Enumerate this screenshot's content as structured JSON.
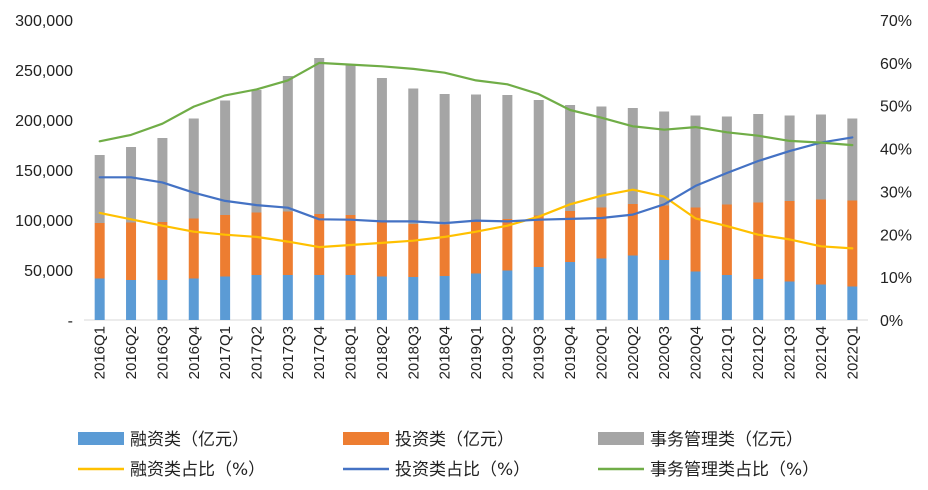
{
  "chart_data": {
    "type": "bar",
    "stacked": true,
    "categories": [
      "2016Q1",
      "2016Q2",
      "2016Q3",
      "2016Q4",
      "2017Q1",
      "2017Q2",
      "2017Q3",
      "2017Q4",
      "2018Q1",
      "2018Q2",
      "2018Q3",
      "2018Q4",
      "2019Q1",
      "2019Q2",
      "2019Q3",
      "2019Q4",
      "2020Q1",
      "2020Q2",
      "2020Q3",
      "2020Q4",
      "2021Q1",
      "2021Q2",
      "2021Q3",
      "2021Q4",
      "2022Q1"
    ],
    "left_axis": {
      "ylim": [
        0,
        300000
      ],
      "ticks": [
        0,
        50000,
        100000,
        150000,
        200000,
        250000,
        300000
      ],
      "tick_labels": [
        "-",
        "50,000",
        "100,000",
        "150,000",
        "200,000",
        "250,000",
        "300,000"
      ]
    },
    "right_axis": {
      "ylim": [
        0,
        70
      ],
      "ticks": [
        0,
        10,
        20,
        30,
        40,
        50,
        60,
        70
      ],
      "tick_labels": [
        "0%",
        "10%",
        "20%",
        "30%",
        "40%",
        "50%",
        "60%",
        "70%"
      ]
    },
    "bar_series": [
      {
        "name": "融资类（亿元）",
        "color": "#5B9BD5",
        "values": [
          41500,
          40000,
          40000,
          41500,
          43500,
          45000,
          45000,
          45000,
          45000,
          43500,
          43000,
          44000,
          46500,
          49500,
          53000,
          58000,
          61500,
          64500,
          60000,
          48500,
          45000,
          41000,
          38500,
          35500,
          33500
        ]
      },
      {
        "name": "投资类（亿元）",
        "color": "#ED7D31",
        "values": [
          55500,
          57500,
          58000,
          60000,
          61500,
          62500,
          63500,
          61000,
          60000,
          54500,
          53000,
          51500,
          53500,
          51500,
          51500,
          51000,
          51000,
          51500,
          54500,
          64000,
          70500,
          76500,
          80500,
          85000,
          86000
        ]
      },
      {
        "name": "事务管理类（亿元）",
        "color": "#A5A5A5",
        "values": [
          68000,
          75500,
          84000,
          100000,
          114500,
          122500,
          135500,
          156000,
          150000,
          144000,
          135500,
          130500,
          125500,
          124000,
          115500,
          106000,
          101000,
          96000,
          94000,
          92000,
          88000,
          88500,
          85500,
          85000,
          82000
        ]
      }
    ],
    "line_series": [
      {
        "name": "融资类占比（%）",
        "color": "#FFC000",
        "axis": "right",
        "values": [
          25.0,
          23.5,
          22.0,
          20.6,
          19.9,
          19.4,
          18.3,
          17.0,
          17.5,
          18.0,
          18.5,
          19.4,
          20.6,
          22.0,
          24.1,
          27.0,
          29.0,
          30.4,
          28.8,
          23.7,
          21.9,
          19.9,
          18.8,
          17.2,
          16.7
        ]
      },
      {
        "name": "投资类占比（%）",
        "color": "#4472C4",
        "axis": "right",
        "values": [
          33.3,
          33.3,
          32.1,
          29.7,
          27.8,
          26.8,
          26.2,
          23.5,
          23.4,
          23.0,
          23.0,
          22.6,
          23.2,
          23.0,
          23.4,
          23.6,
          23.8,
          24.6,
          27.0,
          31.3,
          34.3,
          37.1,
          39.4,
          41.4,
          42.6
        ]
      },
      {
        "name": "事务管理类占比（%）",
        "color": "#70AD47",
        "axis": "right",
        "values": [
          41.7,
          43.2,
          45.8,
          49.8,
          52.4,
          53.8,
          55.9,
          60.0,
          59.6,
          59.2,
          58.6,
          57.7,
          55.9,
          55.0,
          52.7,
          49.0,
          47.2,
          45.2,
          44.4,
          45.0,
          43.8,
          43.0,
          41.8,
          41.4,
          40.8
        ]
      }
    ],
    "legend_position": "bottom",
    "grid": false
  }
}
